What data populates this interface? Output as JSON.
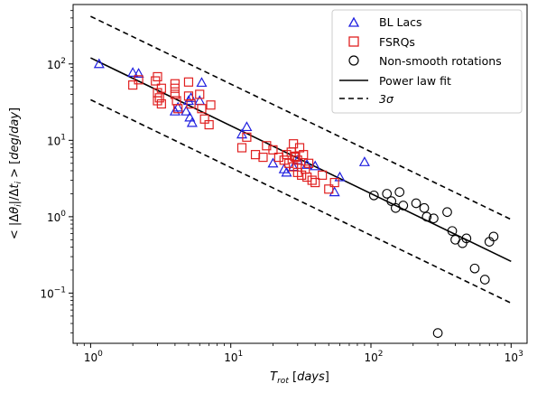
{
  "chart_data": {
    "type": "scatter",
    "xlabel": "T_rot [days]",
    "ylabel": "< |Δθ_i|/Δt_i > [deg/day]",
    "xscale": "log",
    "yscale": "log",
    "xlim": [
      0.75,
      1300
    ],
    "ylim": [
      0.022,
      600
    ],
    "x_ticks": [
      {
        "value": 1,
        "mantissa": "10",
        "exp": "0"
      },
      {
        "value": 10,
        "mantissa": "10",
        "exp": "1"
      },
      {
        "value": 100,
        "mantissa": "10",
        "exp": "2"
      },
      {
        "value": 1000,
        "mantissa": "10",
        "exp": "3"
      }
    ],
    "y_ticks": [
      {
        "value": 0.1,
        "mantissa": "10",
        "exp": "−1"
      },
      {
        "value": 1,
        "mantissa": "10",
        "exp": "0"
      },
      {
        "value": 10,
        "mantissa": "10",
        "exp": "1"
      },
      {
        "value": 100,
        "mantissa": "10",
        "exp": "2"
      }
    ],
    "grid": false,
    "legend_position": "top-right",
    "series": [
      {
        "name": "BL Lacs",
        "marker": "triangle",
        "color": "#2020e0",
        "points": [
          [
            1.15,
            100
          ],
          [
            2.0,
            77
          ],
          [
            2.2,
            75
          ],
          [
            4.0,
            24
          ],
          [
            4.2,
            27
          ],
          [
            4.8,
            24
          ],
          [
            5.0,
            33
          ],
          [
            5.1,
            20
          ],
          [
            5.2,
            36
          ],
          [
            5.3,
            17
          ],
          [
            6.0,
            33
          ],
          [
            6.2,
            57
          ],
          [
            12.0,
            12
          ],
          [
            13.0,
            15
          ],
          [
            20.0,
            5.0
          ],
          [
            24.0,
            4.2
          ],
          [
            25.0,
            3.8
          ],
          [
            28.0,
            4.5
          ],
          [
            30.0,
            5.5
          ],
          [
            35.0,
            4.8
          ],
          [
            40.0,
            4.6
          ],
          [
            55.0,
            2.1
          ],
          [
            60.0,
            3.3
          ],
          [
            90.0,
            5.2
          ]
        ]
      },
      {
        "name": "FSRQs",
        "marker": "square",
        "color": "#e02020",
        "points": [
          [
            2.0,
            53
          ],
          [
            2.2,
            62
          ],
          [
            2.9,
            60
          ],
          [
            3.0,
            68
          ],
          [
            3.0,
            42
          ],
          [
            3.0,
            33
          ],
          [
            3.1,
            36
          ],
          [
            3.2,
            48
          ],
          [
            3.2,
            30
          ],
          [
            4.0,
            55
          ],
          [
            4.0,
            48
          ],
          [
            4.0,
            40
          ],
          [
            4.1,
            33
          ],
          [
            4.2,
            26
          ],
          [
            5.0,
            58
          ],
          [
            5.0,
            38
          ],
          [
            5.2,
            30
          ],
          [
            6.0,
            40
          ],
          [
            6.2,
            26
          ],
          [
            6.5,
            19
          ],
          [
            7.0,
            16
          ],
          [
            7.2,
            29
          ],
          [
            12.0,
            8.0
          ],
          [
            13.0,
            11
          ],
          [
            15.0,
            6.5
          ],
          [
            17.0,
            6.0
          ],
          [
            18.0,
            8.5
          ],
          [
            20.0,
            7.5
          ],
          [
            22.0,
            6.0
          ],
          [
            24.0,
            5.5
          ],
          [
            25.0,
            6.5
          ],
          [
            26.0,
            5.0
          ],
          [
            27.0,
            7.0
          ],
          [
            28.0,
            9.0
          ],
          [
            28.0,
            4.5
          ],
          [
            29.0,
            6.0
          ],
          [
            30.0,
            3.8
          ],
          [
            30.0,
            5.5
          ],
          [
            31.0,
            8.0
          ],
          [
            32.0,
            3.5
          ],
          [
            33.0,
            6.5
          ],
          [
            34.0,
            4.2
          ],
          [
            35.0,
            3.3
          ],
          [
            36.0,
            5.0
          ],
          [
            38.0,
            3.0
          ],
          [
            40.0,
            2.8
          ],
          [
            45.0,
            3.5
          ],
          [
            50.0,
            2.3
          ],
          [
            55.0,
            2.8
          ],
          [
            28.5,
            6.2
          ]
        ]
      },
      {
        "name": "Non-smooth rotations",
        "marker": "circle",
        "color": "#000000",
        "points": [
          [
            105,
            1.9
          ],
          [
            130,
            2.0
          ],
          [
            140,
            1.6
          ],
          [
            150,
            1.3
          ],
          [
            160,
            2.1
          ],
          [
            170,
            1.4
          ],
          [
            210,
            1.5
          ],
          [
            240,
            1.3
          ],
          [
            250,
            1.0
          ],
          [
            280,
            0.95
          ],
          [
            300,
            0.03
          ],
          [
            350,
            1.15
          ],
          [
            380,
            0.65
          ],
          [
            400,
            0.5
          ],
          [
            450,
            0.45
          ],
          [
            480,
            0.52
          ],
          [
            550,
            0.21
          ],
          [
            650,
            0.15
          ],
          [
            700,
            0.47
          ],
          [
            750,
            0.55
          ]
        ]
      }
    ],
    "lines": [
      {
        "name": "Power law fit",
        "style": "solid",
        "x": [
          1,
          1000
        ],
        "y": [
          120,
          0.26
        ]
      },
      {
        "name": "3σ",
        "style": "dashed",
        "x": [
          1,
          1000
        ],
        "y": [
          420,
          0.92
        ]
      },
      {
        "name": "",
        "style": "dashed",
        "x": [
          1,
          1000
        ],
        "y": [
          34,
          0.074
        ]
      }
    ]
  }
}
